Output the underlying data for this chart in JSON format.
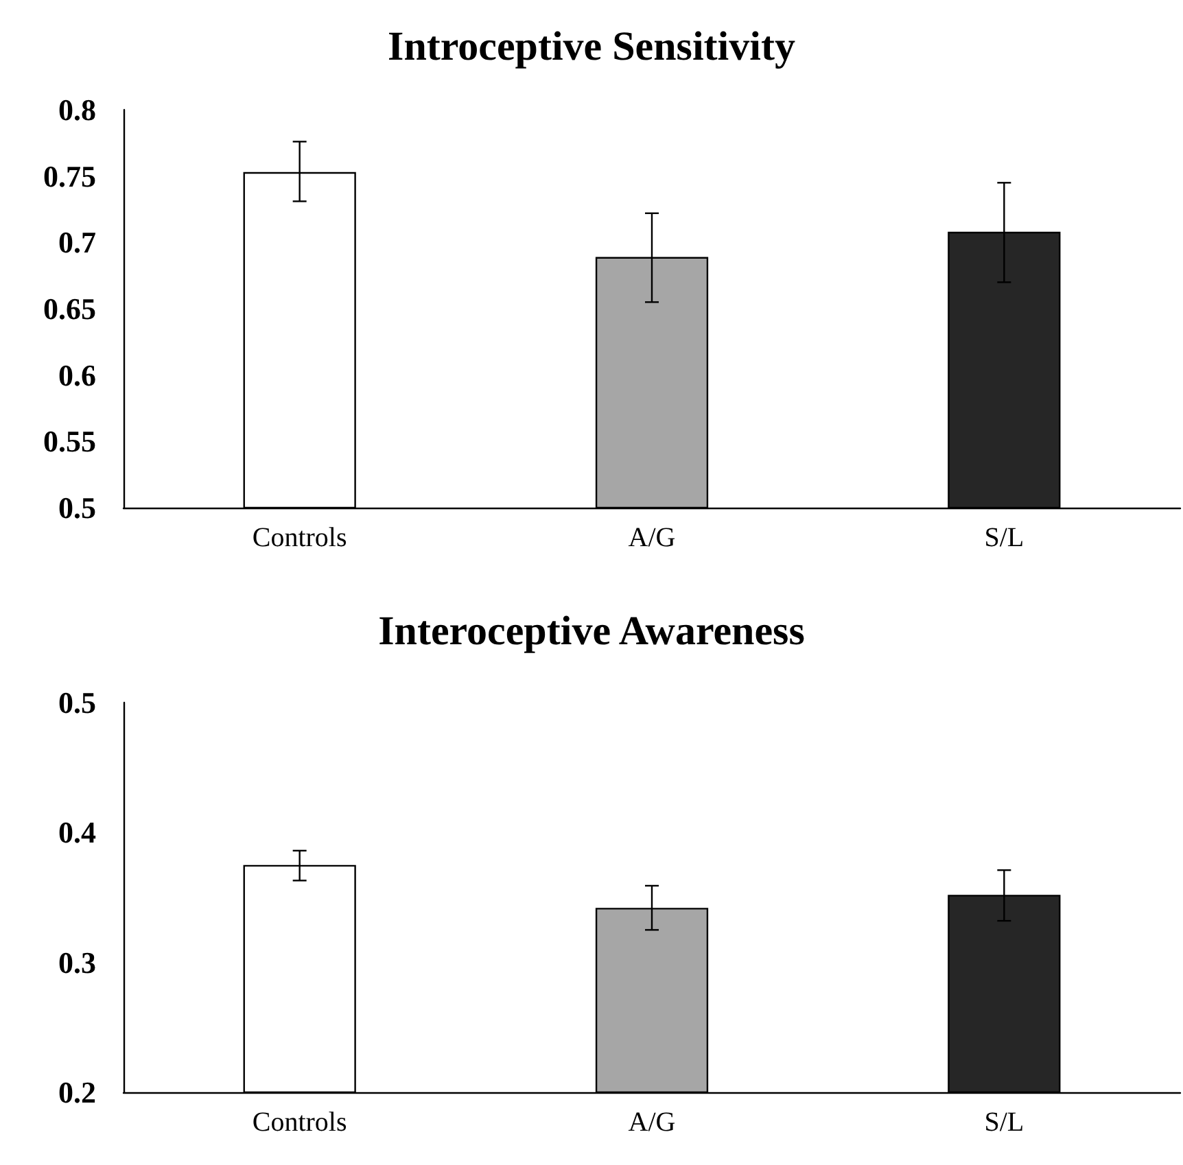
{
  "chart_data": [
    {
      "type": "bar",
      "title": "Introceptive Sensitivity",
      "categories": [
        "Controls",
        "A/G",
        "S/L"
      ],
      "values": [
        0.753,
        0.689,
        0.708
      ],
      "colors": [
        "#ffffff",
        "#a6a6a6",
        "#262626"
      ],
      "errors": [
        [
          0.731,
          0.776
        ],
        [
          0.655,
          0.722
        ],
        [
          0.67,
          0.745
        ]
      ],
      "ylim": [
        0.5,
        0.8
      ],
      "yticks": [
        0.5,
        0.55,
        0.6,
        0.65,
        0.7,
        0.75,
        0.8
      ],
      "grid": false
    },
    {
      "type": "bar",
      "title": "Interoceptive Awareness",
      "categories": [
        "Controls",
        "A/G",
        "S/L"
      ],
      "values": [
        0.375,
        0.342,
        0.352
      ],
      "colors": [
        "#ffffff",
        "#a6a6a6",
        "#262626"
      ],
      "errors": [
        [
          0.363,
          0.386
        ],
        [
          0.325,
          0.359
        ],
        [
          0.332,
          0.371
        ]
      ],
      "ylim": [
        0.2,
        0.5
      ],
      "yticks": [
        0.2,
        0.3,
        0.4,
        0.5
      ],
      "grid": false
    }
  ]
}
